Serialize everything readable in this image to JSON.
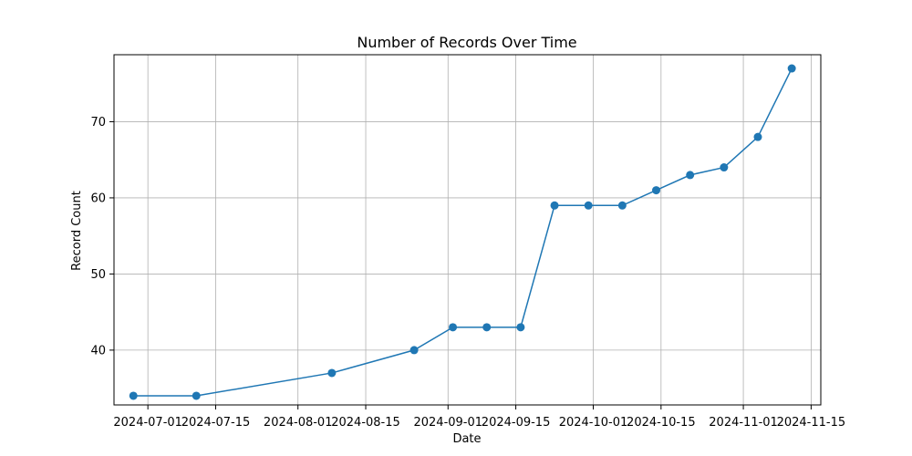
{
  "chart_data": {
    "type": "line",
    "title": "Number of Records Over Time",
    "xlabel": "Date",
    "ylabel": "Record Count",
    "x_tick_labels": [
      "2024-07-01",
      "2024-07-15",
      "2024-08-01",
      "2024-08-15",
      "2024-09-01",
      "2024-09-15",
      "2024-10-01",
      "2024-10-15",
      "2024-11-01",
      "2024-11-15"
    ],
    "y_ticks": [
      40,
      50,
      60,
      70
    ],
    "xlim": [
      "2024-06-24",
      "2024-11-17"
    ],
    "ylim": [
      32.8,
      78.8
    ],
    "grid": true,
    "color": "#1f77b4",
    "series": [
      {
        "x": [
          "2024-06-28",
          "2024-07-11",
          "2024-08-08",
          "2024-08-25",
          "2024-09-02",
          "2024-09-09",
          "2024-09-16",
          "2024-09-23",
          "2024-09-30",
          "2024-10-07",
          "2024-10-14",
          "2024-10-21",
          "2024-10-28",
          "2024-11-04",
          "2024-11-11"
        ],
        "values": [
          34,
          34,
          37,
          40,
          43,
          43,
          43,
          59,
          59,
          59,
          61,
          63,
          64,
          68,
          77
        ]
      }
    ]
  }
}
